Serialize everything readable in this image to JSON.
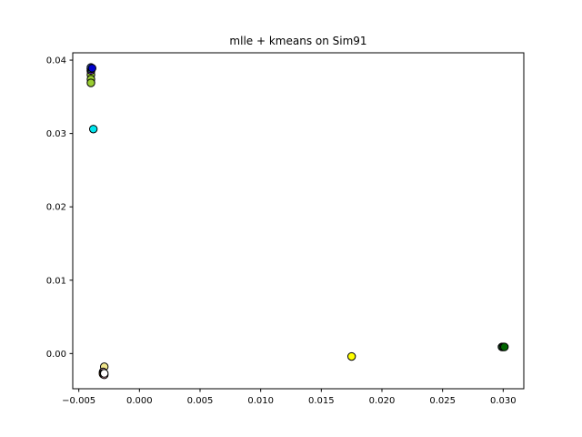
{
  "chart_data": {
    "type": "scatter",
    "title": "mlle + kmeans on Sim91",
    "xlabel": "",
    "ylabel": "",
    "xlim": [
      -0.0055,
      0.0317
    ],
    "ylim": [
      -0.0048,
      0.041
    ],
    "xticks": [
      -0.005,
      0.0,
      0.005,
      0.01,
      0.015,
      0.02,
      0.025,
      0.03
    ],
    "xtick_labels": [
      "−0.005",
      "0.000",
      "0.005",
      "0.010",
      "0.015",
      "0.020",
      "0.025",
      "0.030"
    ],
    "yticks": [
      0.0,
      0.01,
      0.02,
      0.03,
      0.04
    ],
    "ytick_labels": [
      "0.00",
      "0.01",
      "0.02",
      "0.03",
      "0.04"
    ],
    "grid": false,
    "legend": "none",
    "points": [
      {
        "x": -0.004,
        "y": 0.0388,
        "color": "#9acd32"
      },
      {
        "x": -0.004,
        "y": 0.0385,
        "color": "#9acd32"
      },
      {
        "x": -0.004,
        "y": 0.038,
        "color": "#9acd32"
      },
      {
        "x": -0.004,
        "y": 0.0374,
        "color": "#9acd32"
      },
      {
        "x": -0.004,
        "y": 0.0369,
        "color": "#9acd32"
      },
      {
        "x": -0.004,
        "y": 0.0386,
        "color": "#8a2be2"
      },
      {
        "x": -0.004,
        "y": 0.0388,
        "color": "#20b2aa"
      },
      {
        "x": -0.004,
        "y": 0.039,
        "color": "#4169e1"
      },
      {
        "x": -0.0039,
        "y": 0.0389,
        "color": "#0000cd"
      },
      {
        "x": -0.0038,
        "y": 0.0306,
        "color": "#00e5ee"
      },
      {
        "x": -0.0029,
        "y": -0.0018,
        "color": "#f0e68c"
      },
      {
        "x": -0.003,
        "y": -0.0025,
        "color": "#ffc0cb"
      },
      {
        "x": -0.003,
        "y": -0.0027,
        "color": "#d3d3d3"
      },
      {
        "x": -0.003,
        "y": -0.0028,
        "color": "#8b4513"
      },
      {
        "x": -0.0029,
        "y": -0.0029,
        "color": "#ffb6c1"
      },
      {
        "x": -0.0029,
        "y": -0.0027,
        "color": "#ffffff"
      },
      {
        "x": 0.0175,
        "y": -0.0004,
        "color": "#ffff00"
      },
      {
        "x": 0.0299,
        "y": 0.0009,
        "color": "#2e8b57"
      },
      {
        "x": 0.03,
        "y": 0.0009,
        "color": "#228b22"
      },
      {
        "x": 0.0301,
        "y": 0.0009,
        "color": "#006400"
      }
    ]
  }
}
